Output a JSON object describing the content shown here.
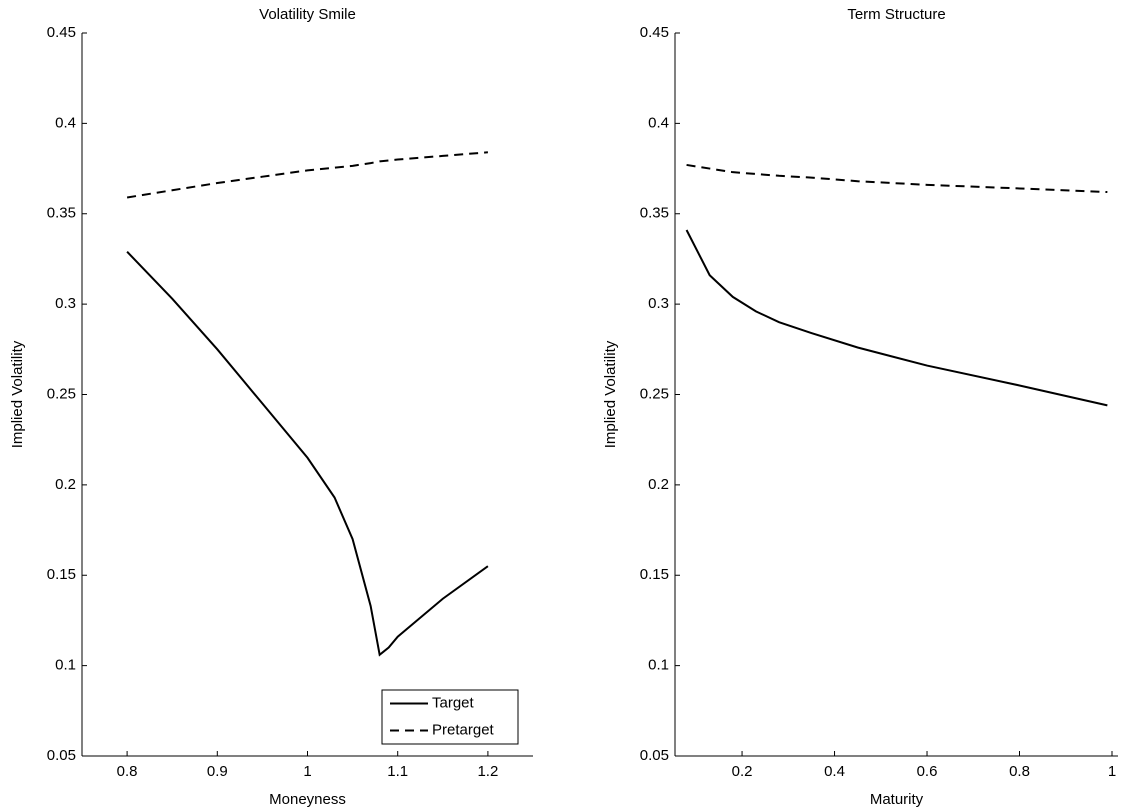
{
  "chart_data": [
    {
      "type": "line",
      "title": "Volatility Smile",
      "x_label": "Moneyness",
      "y_label": "Implied Volatility",
      "x": [
        0.8,
        0.85,
        0.9,
        0.95,
        1.0,
        1.03,
        1.05,
        1.07,
        1.08,
        1.09,
        1.1,
        1.15,
        1.2
      ],
      "series": [
        {
          "name": "Target",
          "color": "#000000",
          "dash": "solid",
          "values": [
            0.329,
            0.303,
            0.275,
            0.245,
            0.215,
            0.193,
            0.17,
            0.133,
            0.106,
            0.11,
            0.116,
            0.137,
            0.155
          ]
        },
        {
          "name": "Pretarget",
          "color": "#000000",
          "dash": "dashed",
          "values": [
            0.359,
            0.363,
            0.367,
            0.3705,
            0.374,
            0.3755,
            0.3765,
            0.378,
            0.379,
            0.3795,
            0.38,
            0.382,
            0.384
          ]
        }
      ],
      "xlim": [
        0.75,
        1.25
      ],
      "xticks": [
        0.8,
        0.9,
        1,
        1.1,
        1.2
      ],
      "ylim": [
        0.05,
        0.45
      ],
      "yticks": [
        0.05,
        0.1,
        0.15,
        0.2,
        0.25,
        0.3,
        0.35,
        0.4,
        0.45
      ],
      "legend": "lower right"
    },
    {
      "type": "line",
      "title": "Term Structure",
      "x_label": "Maturity",
      "y_label": "Implied Volatility",
      "x": [
        0.08,
        0.13,
        0.18,
        0.23,
        0.28,
        0.35,
        0.45,
        0.6,
        0.8,
        0.99
      ],
      "series": [
        {
          "color": "#000000",
          "dash": "solid",
          "values": [
            0.341,
            0.316,
            0.304,
            0.296,
            0.29,
            0.284,
            0.276,
            0.266,
            0.255,
            0.244
          ]
        },
        {
          "color": "#000000",
          "dash": "dashed",
          "values": [
            0.377,
            0.375,
            0.373,
            0.372,
            0.371,
            0.37,
            0.368,
            0.366,
            0.364,
            0.362
          ]
        }
      ],
      "xlim": [
        0.055,
        1.013
      ],
      "xticks": [
        0.2,
        0.4,
        0.6,
        0.8,
        1
      ],
      "ylim": [
        0.05,
        0.45
      ],
      "yticks": [
        0.05,
        0.1,
        0.15,
        0.2,
        0.25,
        0.3,
        0.35,
        0.4,
        0.45
      ]
    }
  ]
}
